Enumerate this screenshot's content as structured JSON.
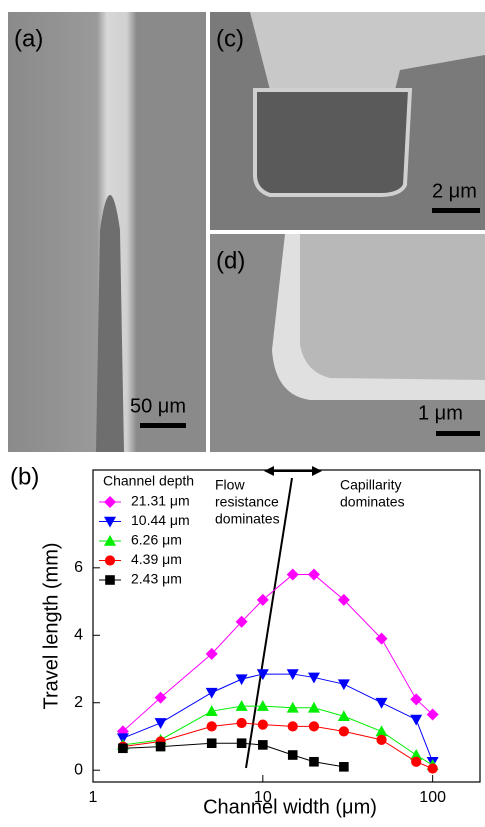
{
  "panels": [
    {
      "label": "(a)",
      "scale_bar": "50 μm"
    },
    {
      "label": "(c)",
      "scale_bar": "2 μm"
    },
    {
      "label": "(d)",
      "scale_bar": "1 μm"
    }
  ],
  "chart_data": {
    "type": "line",
    "panel_label": "(b)",
    "x_label": "Channel width (μm)",
    "y_label": "Travel length (mm)",
    "xscale": "log",
    "xlim": [
      1,
      190
    ],
    "xticks": [
      1,
      10,
      100
    ],
    "ylim": [
      -0.35,
      8.9
    ],
    "yticks": [
      0,
      2,
      4,
      6
    ],
    "legend_title": "Channel depth",
    "legend": "upper left",
    "annotations": [
      [
        "Flow",
        "resistance",
        "dominates"
      ],
      [
        "Capillarity",
        "dominates"
      ]
    ],
    "series": [
      {
        "name": "21.31 μm",
        "color": "#ff00ff",
        "marker": "diamond",
        "x": [
          1.5,
          2.5,
          5,
          7.5,
          10,
          15,
          20,
          30,
          50,
          80,
          100
        ],
        "values": [
          1.15,
          2.15,
          3.45,
          4.4,
          5.05,
          5.8,
          5.8,
          5.05,
          3.9,
          2.1,
          1.65
        ]
      },
      {
        "name": "10.44 μm",
        "color": "#0000ff",
        "marker": "triangle-down",
        "x": [
          1.5,
          2.5,
          5,
          7.5,
          10,
          15,
          20,
          30,
          50,
          80,
          100
        ],
        "values": [
          0.95,
          1.4,
          2.3,
          2.7,
          2.85,
          2.85,
          2.75,
          2.55,
          2.0,
          1.5,
          0.25
        ]
      },
      {
        "name": "6.26 μm",
        "color": "#00ee00",
        "marker": "triangle-up",
        "x": [
          1.5,
          2.5,
          5,
          7.5,
          10,
          15,
          20,
          30,
          50,
          80,
          100
        ],
        "values": [
          0.75,
          0.9,
          1.75,
          1.9,
          1.9,
          1.85,
          1.85,
          1.6,
          1.15,
          0.45,
          0.15
        ]
      },
      {
        "name": "4.39 μm",
        "color": "#ff0000",
        "marker": "circle",
        "x": [
          1.5,
          2.5,
          5,
          7.5,
          10,
          15,
          20,
          30,
          50,
          80,
          100
        ],
        "values": [
          0.7,
          0.85,
          1.3,
          1.4,
          1.35,
          1.3,
          1.3,
          1.15,
          0.9,
          0.25,
          0.05
        ]
      },
      {
        "name": "2.43 μm",
        "color": "#000000",
        "marker": "square",
        "x": [
          1.5,
          2.5,
          5,
          7.5,
          10,
          15,
          20,
          30
        ],
        "values": [
          0.65,
          0.7,
          0.8,
          0.8,
          0.75,
          0.45,
          0.25,
          0.1
        ]
      }
    ]
  }
}
